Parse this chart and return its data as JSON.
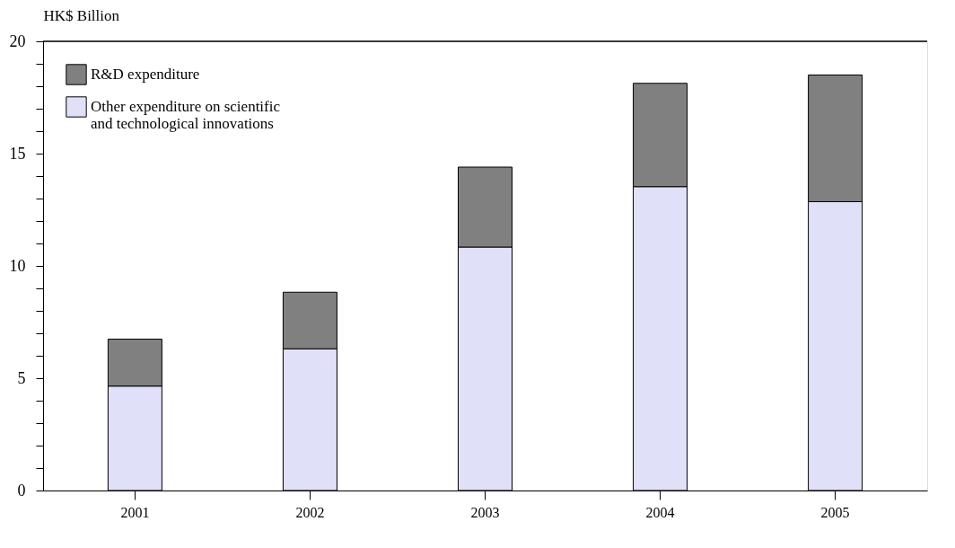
{
  "chart_data": {
    "type": "bar",
    "stacked": true,
    "ylabel": "HK$ Billion",
    "categories": [
      "2001",
      "2002",
      "2003",
      "2004",
      "2005"
    ],
    "series": [
      {
        "name": "Other expenditure on scientific\nand technological innovations",
        "color": "#e0e0f8",
        "values": [
          4.65,
          6.31,
          10.84,
          13.53,
          12.86
        ]
      },
      {
        "name": "R&D expenditure",
        "color": "#808080",
        "values": [
          2.09,
          2.52,
          3.56,
          4.6,
          5.64
        ]
      }
    ],
    "ylim": [
      0,
      20
    ],
    "yticks": [
      0,
      {
        "value": 1,
        "label": null
      },
      {
        "value": 2,
        "label": null
      },
      {
        "value": 3,
        "label": null
      },
      {
        "value": 4,
        "label": null
      },
      5,
      {
        "value": 6,
        "label": null
      },
      {
        "value": 7,
        "label": null
      },
      {
        "value": 8,
        "label": null
      },
      {
        "value": 9,
        "label": null
      },
      10,
      {
        "value": 11,
        "label": null
      },
      {
        "value": 12,
        "label": null
      },
      {
        "value": 13,
        "label": null
      },
      {
        "value": 14,
        "label": null
      },
      15,
      {
        "value": 16,
        "label": null
      },
      {
        "value": 17,
        "label": null
      },
      {
        "value": 18,
        "label": null
      },
      {
        "value": 19,
        "label": null
      },
      20
    ],
    "grid": false,
    "legend": "top left"
  }
}
